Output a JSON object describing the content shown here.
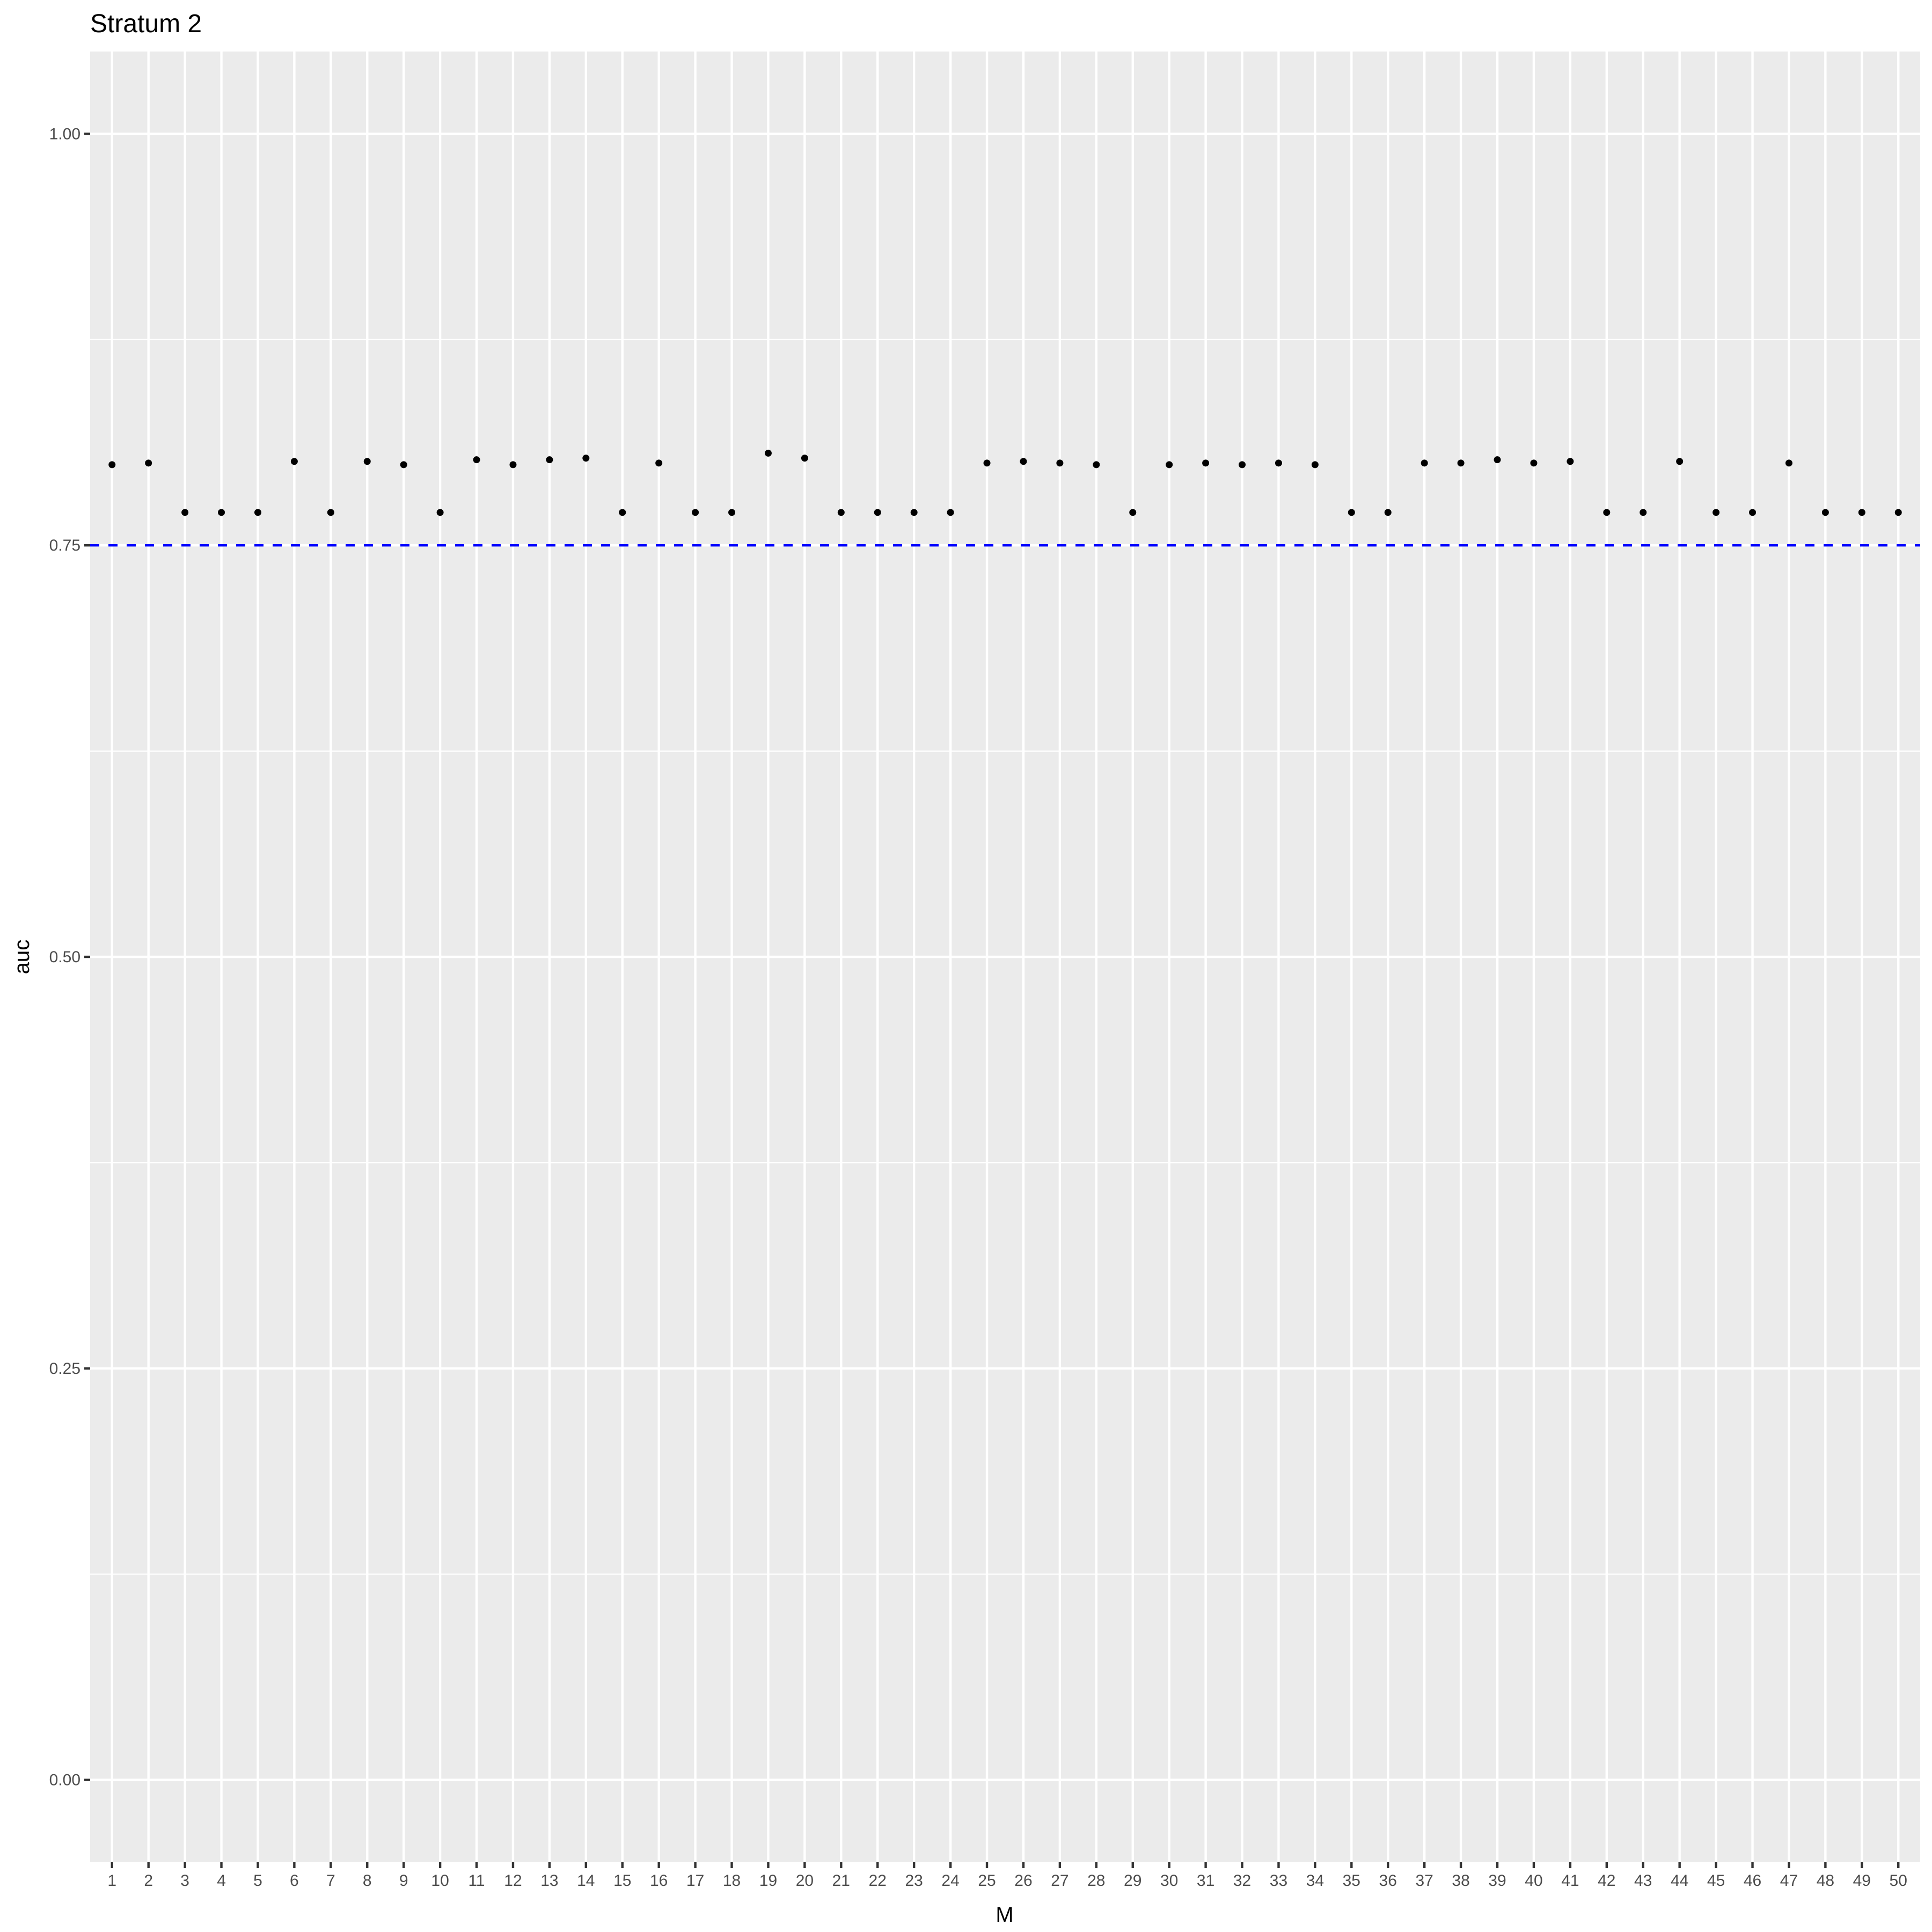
{
  "chart_data": {
    "type": "scatter",
    "title": "Stratum 2",
    "xlabel": "M",
    "ylabel": "auc",
    "x": [
      1,
      2,
      3,
      4,
      5,
      6,
      7,
      8,
      9,
      10,
      11,
      12,
      13,
      14,
      15,
      16,
      17,
      18,
      19,
      20,
      21,
      22,
      23,
      24,
      25,
      26,
      27,
      28,
      29,
      30,
      31,
      32,
      33,
      34,
      35,
      36,
      37,
      38,
      39,
      40,
      41,
      42,
      43,
      44,
      45,
      46,
      47,
      48,
      49,
      50
    ],
    "y": [
      0.799,
      0.8,
      0.77,
      0.77,
      0.77,
      0.801,
      0.77,
      0.801,
      0.799,
      0.77,
      0.802,
      0.799,
      0.802,
      0.803,
      0.77,
      0.8,
      0.77,
      0.77,
      0.806,
      0.803,
      0.77,
      0.77,
      0.77,
      0.77,
      0.8,
      0.801,
      0.8,
      0.799,
      0.77,
      0.799,
      0.8,
      0.799,
      0.8,
      0.799,
      0.77,
      0.77,
      0.8,
      0.8,
      0.802,
      0.8,
      0.801,
      0.77,
      0.77,
      0.801,
      0.77,
      0.77,
      0.8,
      0.77,
      0.77,
      0.77
    ],
    "x_ticks": [
      "1",
      "2",
      "3",
      "4",
      "5",
      "6",
      "7",
      "8",
      "9",
      "10",
      "11",
      "12",
      "13",
      "14",
      "15",
      "16",
      "17",
      "18",
      "19",
      "20",
      "21",
      "22",
      "23",
      "24",
      "25",
      "26",
      "27",
      "28",
      "29",
      "30",
      "31",
      "32",
      "33",
      "34",
      "35",
      "36",
      "37",
      "38",
      "39",
      "40",
      "41",
      "42",
      "43",
      "44",
      "45",
      "46",
      "47",
      "48",
      "49",
      "50"
    ],
    "y_ticks": [
      "0.00",
      "0.25",
      "0.50",
      "0.75",
      "1.00"
    ],
    "y_tick_values": [
      0,
      0.25,
      0.5,
      0.75,
      1.0
    ],
    "ylim": [
      -0.05,
      1.05
    ],
    "xlim": [
      0.4,
      50.6
    ],
    "reference_line": {
      "y": 0.75,
      "color": "#0000ff",
      "style": "dashed"
    },
    "grid": true,
    "panel_background": "#ebebeb",
    "grid_color": "#ffffff",
    "point_color": "#000000"
  }
}
